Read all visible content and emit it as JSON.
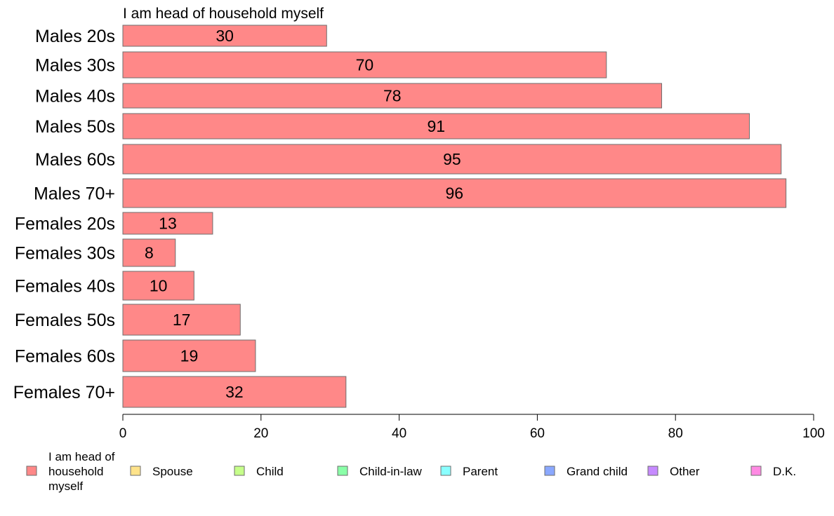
{
  "chart_data": {
    "type": "bar",
    "orientation": "horizontal",
    "title": "I am head of household myself",
    "categories": [
      "Males 20s",
      "Males 30s",
      "Males 40s",
      "Males 50s",
      "Males 60s",
      "Males 70+",
      "Females 20s",
      "Females 30s",
      "Females 40s",
      "Females 50s",
      "Females 60s",
      "Females 70+"
    ],
    "values": [
      29.5,
      70,
      78,
      90.7,
      95.3,
      96,
      13,
      7.6,
      10.3,
      17,
      19.2,
      32.3
    ],
    "value_labels": [
      "30",
      "70",
      "78",
      "91",
      "95",
      "96",
      "13",
      "8",
      "10",
      "17",
      "19",
      "32"
    ],
    "xlim": [
      0,
      100
    ],
    "xticks": [
      "0",
      "20",
      "40",
      "60",
      "80",
      "100"
    ],
    "xlabel": "",
    "ylabel": "",
    "bar_color": "#FF8888",
    "grid": false,
    "legend_position": "bottom",
    "legend": [
      {
        "label": "I am head of household myself",
        "lines": [
          "I am head of",
          "household",
          "myself"
        ],
        "color": "#FF8888"
      },
      {
        "label": "Spouse",
        "lines": [
          "Spouse"
        ],
        "color": "#FFE38A"
      },
      {
        "label": "Child",
        "lines": [
          "Child"
        ],
        "color": "#C6FF8A"
      },
      {
        "label": "Child-in-law",
        "lines": [
          "Child-in-law"
        ],
        "color": "#8AFFA8"
      },
      {
        "label": "Parent",
        "lines": [
          "Parent"
        ],
        "color": "#8AFFFF"
      },
      {
        "label": "Grand child",
        "lines": [
          "Grand child"
        ],
        "color": "#8AA8FF"
      },
      {
        "label": "Other",
        "lines": [
          "Other"
        ],
        "color": "#C68AFF"
      },
      {
        "label": "D.K.",
        "lines": [
          "D.K."
        ],
        "color": "#FF8AE3"
      }
    ]
  }
}
